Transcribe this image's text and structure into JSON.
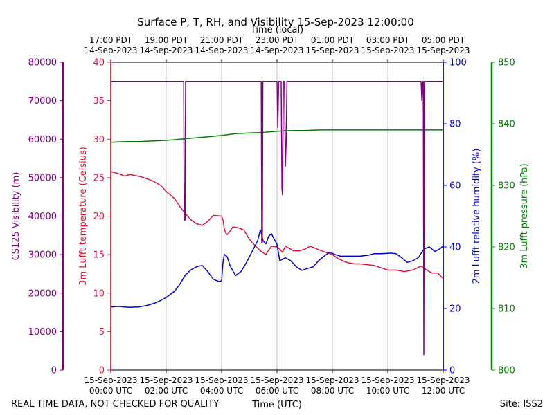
{
  "chart_data": {
    "type": "line",
    "title": "Surface P, T, RH, and Visibility 15-Sep-2023 12:00:00",
    "xlabel_bottom": "Time (UTC)",
    "xlabel_top": "Time (local)",
    "footer_left": "REAL TIME DATA, NOT CHECKED FOR QUALITY",
    "footer_right": "Site: ISS2",
    "x_range_hours": [
      0,
      12
    ],
    "grid": "vertical",
    "bottom_ticks": [
      {
        "h": 0,
        "line1": "15-Sep-2023",
        "line2": "00:00 UTC"
      },
      {
        "h": 2,
        "line1": "15-Sep-2023",
        "line2": "02:00 UTC"
      },
      {
        "h": 4,
        "line1": "15-Sep-2023",
        "line2": "04:00 UTC"
      },
      {
        "h": 6,
        "line1": "15-Sep-2023",
        "line2": "06:00 UTC"
      },
      {
        "h": 8,
        "line1": "15-Sep-2023",
        "line2": "08:00 UTC"
      },
      {
        "h": 10,
        "line1": "15-Sep-2023",
        "line2": "10:00 UTC"
      },
      {
        "h": 12,
        "line1": "15-Sep-2023",
        "line2": "12:00 UTC"
      }
    ],
    "top_ticks": [
      {
        "h": 0,
        "line1": "17:00 PDT",
        "line2": "14-Sep-2023"
      },
      {
        "h": 2,
        "line1": "19:00 PDT",
        "line2": "14-Sep-2023"
      },
      {
        "h": 4,
        "line1": "21:00 PDT",
        "line2": "14-Sep-2023"
      },
      {
        "h": 6,
        "line1": "23:00 PDT",
        "line2": "14-Sep-2023"
      },
      {
        "h": 8,
        "line1": "01:00 PDT",
        "line2": "15-Sep-2023"
      },
      {
        "h": 10,
        "line1": "03:00 PDT",
        "line2": "15-Sep-2023"
      },
      {
        "h": 12,
        "line1": "05:00 PDT",
        "line2": "15-Sep-2023"
      }
    ],
    "axes": {
      "visibility": {
        "label": "CS125 Visibility (m)",
        "min": 0,
        "max": 80000,
        "ticks": [
          0,
          10000,
          20000,
          30000,
          40000,
          50000,
          60000,
          70000,
          80000
        ],
        "color": "#800080"
      },
      "temperature": {
        "label": "3m Lufft temperature (Celsius)",
        "min": 0,
        "max": 40,
        "ticks": [
          0,
          5,
          10,
          15,
          20,
          25,
          30,
          35,
          40
        ],
        "color": "#dc143c"
      },
      "humidity": {
        "label": "2m Lufft relative humidity (%)",
        "min": 0,
        "max": 100,
        "ticks": [
          0,
          20,
          40,
          60,
          80,
          100
        ],
        "color": "#0000cd"
      },
      "pressure": {
        "label": "3m Lufft pressure (hPa)",
        "min": 800,
        "max": 850,
        "ticks": [
          800,
          810,
          820,
          830,
          840,
          850
        ],
        "color": "#008000"
      }
    },
    "series": [
      {
        "axis": "pressure",
        "color": "#008000",
        "points": [
          [
            0,
            837.0
          ],
          [
            0.5,
            837.1
          ],
          [
            1,
            837.1
          ],
          [
            1.5,
            837.2
          ],
          [
            2,
            837.3
          ],
          [
            2.5,
            837.5
          ],
          [
            3,
            837.7
          ],
          [
            3.5,
            837.9
          ],
          [
            4,
            838.1
          ],
          [
            4.5,
            838.4
          ],
          [
            5,
            838.5
          ],
          [
            5.5,
            838.6
          ],
          [
            6,
            838.8
          ],
          [
            6.5,
            838.9
          ],
          [
            7,
            838.9
          ],
          [
            7.5,
            839.0
          ],
          [
            8,
            839.0
          ],
          [
            8.5,
            839.0
          ],
          [
            9,
            839.0
          ],
          [
            9.5,
            839.0
          ],
          [
            10,
            839.0
          ],
          [
            10.5,
            839.0
          ],
          [
            11,
            839.0
          ],
          [
            11.5,
            839.0
          ],
          [
            12,
            839.0
          ]
        ]
      },
      {
        "axis": "temperature",
        "color": "#dc143c",
        "points": [
          [
            0,
            25.8
          ],
          [
            0.3,
            25.5
          ],
          [
            0.5,
            25.2
          ],
          [
            0.7,
            25.4
          ],
          [
            1,
            25.2
          ],
          [
            1.2,
            25.0
          ],
          [
            1.5,
            24.6
          ],
          [
            1.8,
            24.0
          ],
          [
            2,
            23.2
          ],
          [
            2.3,
            22.3
          ],
          [
            2.5,
            21.2
          ],
          [
            2.7,
            20.3
          ],
          [
            2.9,
            19.5
          ],
          [
            3.1,
            19.0
          ],
          [
            3.3,
            18.8
          ],
          [
            3.5,
            19.3
          ],
          [
            3.7,
            20.1
          ],
          [
            4,
            20.0
          ],
          [
            4.05,
            19.5
          ],
          [
            4.1,
            18.3
          ],
          [
            4.15,
            17.8
          ],
          [
            4.2,
            17.6
          ],
          [
            4.3,
            18.0
          ],
          [
            4.4,
            18.6
          ],
          [
            4.6,
            18.5
          ],
          [
            4.8,
            18.2
          ],
          [
            5,
            17.0
          ],
          [
            5.2,
            16.2
          ],
          [
            5.4,
            15.5
          ],
          [
            5.6,
            15.0
          ],
          [
            5.7,
            15.6
          ],
          [
            5.8,
            16.1
          ],
          [
            6,
            16.0
          ],
          [
            6.1,
            15.7
          ],
          [
            6.2,
            15.3
          ],
          [
            6.3,
            16.1
          ],
          [
            6.4,
            15.9
          ],
          [
            6.6,
            15.5
          ],
          [
            6.8,
            15.5
          ],
          [
            7,
            15.7
          ],
          [
            7.2,
            16.1
          ],
          [
            7.4,
            15.8
          ],
          [
            7.6,
            15.5
          ],
          [
            8,
            15.0
          ],
          [
            8.2,
            14.5
          ],
          [
            8.5,
            14.0
          ],
          [
            8.8,
            13.8
          ],
          [
            9,
            13.8
          ],
          [
            9.5,
            13.6
          ],
          [
            10,
            13.0
          ],
          [
            10.3,
            13.0
          ],
          [
            10.6,
            12.8
          ],
          [
            10.9,
            13.0
          ],
          [
            11.2,
            13.5
          ],
          [
            11.4,
            13.0
          ],
          [
            11.6,
            12.6
          ],
          [
            11.8,
            12.6
          ],
          [
            12,
            11.9
          ]
        ]
      },
      {
        "axis": "humidity",
        "color": "#0000cd",
        "points": [
          [
            0,
            20.5
          ],
          [
            0.3,
            20.7
          ],
          [
            0.5,
            20.5
          ],
          [
            0.7,
            20.4
          ],
          [
            1,
            20.5
          ],
          [
            1.3,
            21.0
          ],
          [
            1.6,
            21.8
          ],
          [
            1.8,
            22.6
          ],
          [
            2,
            23.6
          ],
          [
            2.3,
            25.6
          ],
          [
            2.5,
            28.0
          ],
          [
            2.7,
            31.0
          ],
          [
            2.9,
            32.6
          ],
          [
            3.1,
            33.6
          ],
          [
            3.3,
            34.0
          ],
          [
            3.5,
            32.0
          ],
          [
            3.7,
            29.5
          ],
          [
            3.9,
            28.8
          ],
          [
            4,
            29.0
          ],
          [
            4.05,
            35.0
          ],
          [
            4.1,
            37.6
          ],
          [
            4.2,
            36.8
          ],
          [
            4.3,
            34.0
          ],
          [
            4.5,
            30.7
          ],
          [
            4.7,
            32.0
          ],
          [
            4.9,
            35.0
          ],
          [
            5.1,
            38.5
          ],
          [
            5.3,
            42.0
          ],
          [
            5.4,
            45.5
          ],
          [
            5.5,
            42.0
          ],
          [
            5.6,
            41.0
          ],
          [
            5.7,
            43.5
          ],
          [
            5.8,
            44.3
          ],
          [
            5.9,
            42.5
          ],
          [
            6,
            40.8
          ],
          [
            6.1,
            35.5
          ],
          [
            6.2,
            36.0
          ],
          [
            6.3,
            36.5
          ],
          [
            6.5,
            35.5
          ],
          [
            6.7,
            33.5
          ],
          [
            6.9,
            32.4
          ],
          [
            7.1,
            33.0
          ],
          [
            7.3,
            33.5
          ],
          [
            7.5,
            35.5
          ],
          [
            7.7,
            37.0
          ],
          [
            7.9,
            38.3
          ],
          [
            8.1,
            37.5
          ],
          [
            8.3,
            37.0
          ],
          [
            8.6,
            37.0
          ],
          [
            9,
            37.0
          ],
          [
            9.3,
            37.3
          ],
          [
            9.5,
            37.8
          ],
          [
            9.8,
            37.8
          ],
          [
            10.1,
            38.0
          ],
          [
            10.3,
            37.8
          ],
          [
            10.5,
            36.5
          ],
          [
            10.7,
            35.0
          ],
          [
            10.9,
            35.5
          ],
          [
            11.1,
            36.5
          ],
          [
            11.3,
            39.3
          ],
          [
            11.5,
            40.0
          ],
          [
            11.7,
            38.5
          ],
          [
            11.9,
            39.5
          ],
          [
            12,
            40.3
          ]
        ]
      },
      {
        "axis": "visibility",
        "color": "#800080",
        "points": [
          [
            0,
            75000
          ],
          [
            2.63,
            75000
          ],
          [
            2.65,
            39000
          ],
          [
            2.68,
            39000
          ],
          [
            2.7,
            75000
          ],
          [
            5.43,
            75000
          ],
          [
            5.45,
            33000
          ],
          [
            5.47,
            33000
          ],
          [
            5.49,
            75000
          ],
          [
            6.0,
            75000
          ],
          [
            6.03,
            63000
          ],
          [
            6.06,
            75000
          ],
          [
            6.15,
            75000
          ],
          [
            6.18,
            47000
          ],
          [
            6.2,
            45500
          ],
          [
            6.23,
            75000
          ],
          [
            6.27,
            75000
          ],
          [
            6.3,
            53000
          ],
          [
            6.33,
            59000
          ],
          [
            6.36,
            75000
          ],
          [
            11.2,
            75000
          ],
          [
            11.23,
            70000
          ],
          [
            11.26,
            75000
          ],
          [
            11.28,
            75000
          ],
          [
            11.3,
            4000
          ],
          [
            11.32,
            75000
          ],
          [
            12,
            75000
          ]
        ]
      }
    ]
  }
}
